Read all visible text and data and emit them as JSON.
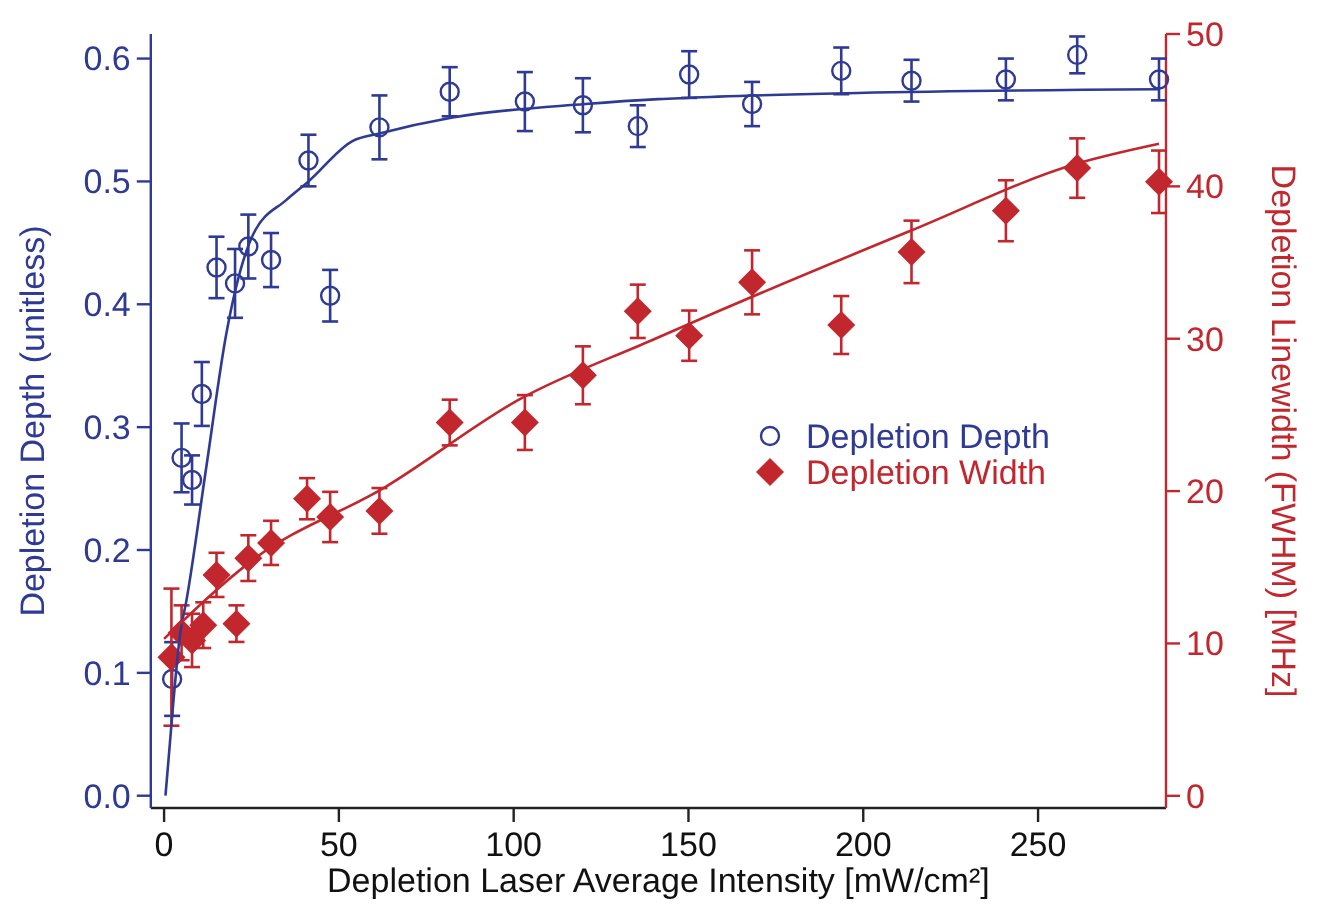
{
  "chart_data": {
    "type": "scatter",
    "xlabel": "Depletion Laser Average Intensity [mW/cm²]",
    "ylabel": "Depletion Depth (unitless)",
    "y2label": "Depletion Linewidth (FWHM) [MHz]",
    "xlim": [
      -3.8,
      286.6
    ],
    "xticks": [
      0,
      50,
      100,
      150,
      200,
      250
    ],
    "ylim": [
      -0.01,
      0.62
    ],
    "yticks": [
      {
        "value": 0,
        "label": "0.0"
      },
      {
        "value": 0.1,
        "label": "0.1"
      },
      {
        "value": 0.2,
        "label": "0.2"
      },
      {
        "value": 0.3,
        "label": "0.3"
      },
      {
        "value": 0.4,
        "label": "0.4"
      },
      {
        "value": 0.5,
        "label": "0.5"
      },
      {
        "value": 0.6,
        "label": "0.6"
      }
    ],
    "y2lim": [
      -0.8,
      50
    ],
    "y2ticks": [
      0,
      10,
      20,
      30,
      40,
      50
    ],
    "grid": false,
    "legend": "right",
    "series": [
      {
        "type": "scatter",
        "name": "Depletion Depth",
        "color": "#2e3a94",
        "marker": "circle",
        "x": [
          2.3,
          5,
          8,
          10.8,
          15,
          20.3,
          24.1,
          30.6,
          41.3,
          47.5,
          61.6,
          81.7,
          103.2,
          119.8,
          135.5,
          150.2,
          168.2,
          193.7,
          213.8,
          240.8,
          261.2,
          284.6
        ],
        "values": [
          0.095,
          0.275,
          0.257,
          0.327,
          0.43,
          0.417,
          0.447,
          0.436,
          0.517,
          0.407,
          0.544,
          0.573,
          0.565,
          0.562,
          0.545,
          0.587,
          0.563,
          0.59,
          0.582,
          0.583,
          0.603,
          0.583
        ],
        "errors": [
          0.03,
          0.028,
          0.02,
          0.026,
          0.025,
          0.028,
          0.026,
          0.022,
          0.021,
          0.021,
          0.026,
          0.02,
          0.024,
          0.022,
          0.017,
          0.019,
          0.018,
          0.019,
          0.017,
          0.017,
          0.015,
          0.017
        ]
      },
      {
        "type": "scatter",
        "name": "Depletion Width",
        "color": "#c1272d",
        "marker": "diamond",
        "axis": "y2",
        "x": [
          2.1,
          5,
          8,
          11.2,
          15,
          20.7,
          24.1,
          30.6,
          40.9,
          47.5,
          61.6,
          81.7,
          103.2,
          119.8,
          135.5,
          150.2,
          168.2,
          193.7,
          213.8,
          240.8,
          261.2,
          284.6
        ],
        "values": [
          9.1,
          10.7,
          10.2,
          11.2,
          14.5,
          11.3,
          15.6,
          16.6,
          19.5,
          18.3,
          18.7,
          24.5,
          24.5,
          27.6,
          31.8,
          30.2,
          33.7,
          30.9,
          35.7,
          38.4,
          41.2,
          40.3
        ],
        "errors": [
          4.5,
          1.8,
          1.75,
          1.5,
          1.45,
          1.2,
          1.5,
          1.45,
          1.35,
          1.65,
          1.5,
          1.5,
          1.8,
          1.9,
          1.75,
          1.65,
          2.1,
          1.9,
          2.05,
          2,
          1.95,
          2.05
        ]
      },
      {
        "type": "line",
        "color": "#2e3a94",
        "marker": "none",
        "x": [
          0.4,
          2.7,
          4.6,
          6.4,
          12.1,
          17.8,
          25.5,
          35,
          41.3,
          54,
          61.6,
          82.5,
          120.5,
          141.4,
          158.5,
          198.5,
          284.6
        ],
        "values": [
          0,
          0.078,
          0.132,
          0.159,
          0.268,
          0.376,
          0.457,
          0.485,
          0.5,
          0.533,
          0.539,
          0.552,
          0.563,
          0.567,
          0.569,
          0.572,
          0.575
        ]
      },
      {
        "type": "line",
        "color": "#c1272d",
        "marker": "none",
        "axis": "y2",
        "x": [
          0,
          25.5,
          63.5,
          101.5,
          139.5,
          158.5,
          213.7,
          261.2,
          284.6
        ],
        "values": [
          10.3,
          15.5,
          20.3,
          26,
          29.9,
          31.8,
          37.1,
          41.5,
          42.8
        ]
      }
    ]
  }
}
